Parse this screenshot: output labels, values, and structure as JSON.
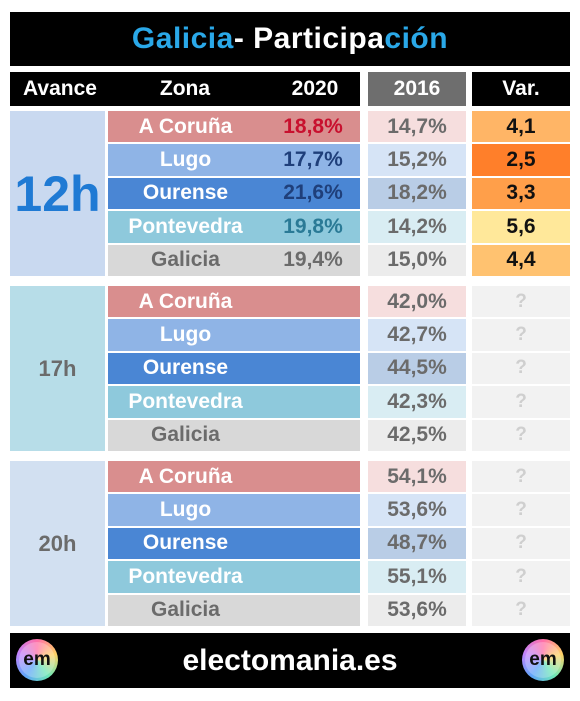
{
  "title": {
    "part1": "Galicia",
    "part2": " - Participa",
    "part3": "ción"
  },
  "headers": {
    "avance": "Avance",
    "zona": "Zona",
    "y2020": "2020",
    "y2016": "2016",
    "var": "Var."
  },
  "blocks": [
    {
      "avance": "12h",
      "rows": [
        {
          "zona": "A Coruña",
          "v2020": "18,8%",
          "v2016": "14,7%",
          "var": "4,1"
        },
        {
          "zona": "Lugo",
          "v2020": "17,7%",
          "v2016": "15,2%",
          "var": "2,5"
        },
        {
          "zona": "Ourense",
          "v2020": "21,6%",
          "v2016": "18,2%",
          "var": "3,3"
        },
        {
          "zona": "Pontevedra",
          "v2020": "19,8%",
          "v2016": "14,2%",
          "var": "5,6"
        },
        {
          "zona": "Galicia",
          "v2020": "19,4%",
          "v2016": "15,0%",
          "var": "4,4"
        }
      ]
    },
    {
      "avance": "17h",
      "rows": [
        {
          "zona": "A Coruña",
          "v2020": "",
          "v2016": "42,0%",
          "var": "?"
        },
        {
          "zona": "Lugo",
          "v2020": "",
          "v2016": "42,7%",
          "var": "?"
        },
        {
          "zona": "Ourense",
          "v2020": "",
          "v2016": "44,5%",
          "var": "?"
        },
        {
          "zona": "Pontevedra",
          "v2020": "",
          "v2016": "42,3%",
          "var": "?"
        },
        {
          "zona": "Galicia",
          "v2020": "",
          "v2016": "42,5%",
          "var": "?"
        }
      ]
    },
    {
      "avance": "20h",
      "rows": [
        {
          "zona": "A Coruña",
          "v2020": "",
          "v2016": "54,1%",
          "var": "?"
        },
        {
          "zona": "Lugo",
          "v2020": "",
          "v2016": "53,6%",
          "var": "?"
        },
        {
          "zona": "Ourense",
          "v2020": "",
          "v2016": "48,7%",
          "var": "?"
        },
        {
          "zona": "Pontevedra",
          "v2020": "",
          "v2016": "55,1%",
          "var": "?"
        },
        {
          "zona": "Galicia",
          "v2020": "",
          "v2016": "53,6%",
          "var": "?"
        }
      ]
    }
  ],
  "footer": {
    "site": "electomania.es",
    "logo_text": "em"
  },
  "colors": {
    "zona_bg": [
      "#d98e8e",
      "#8fb4e6",
      "#4a86d4",
      "#8ec9dc",
      "#d8d8d8"
    ],
    "zona_txt_12h": [
      "#c8102e",
      "#1f3f7a",
      "#1f3f7a",
      "#2a7a96",
      "#6b6b6b"
    ],
    "y2016_bg": [
      "#f6dede",
      "#d6e4f6",
      "#b9cde6",
      "#d9edf3",
      "#ececec"
    ],
    "var_bg": [
      "#ffb566",
      "#ff7f2a",
      "#ff9f4a",
      "#ffe89a",
      "#ffc270"
    ],
    "avance_bg": [
      "#c9d9f0",
      "#b7dde8",
      "#d2e0f1"
    ],
    "avance_txt": [
      "#1f7ad4",
      "#6b6b6b",
      "#6b6b6b"
    ]
  }
}
